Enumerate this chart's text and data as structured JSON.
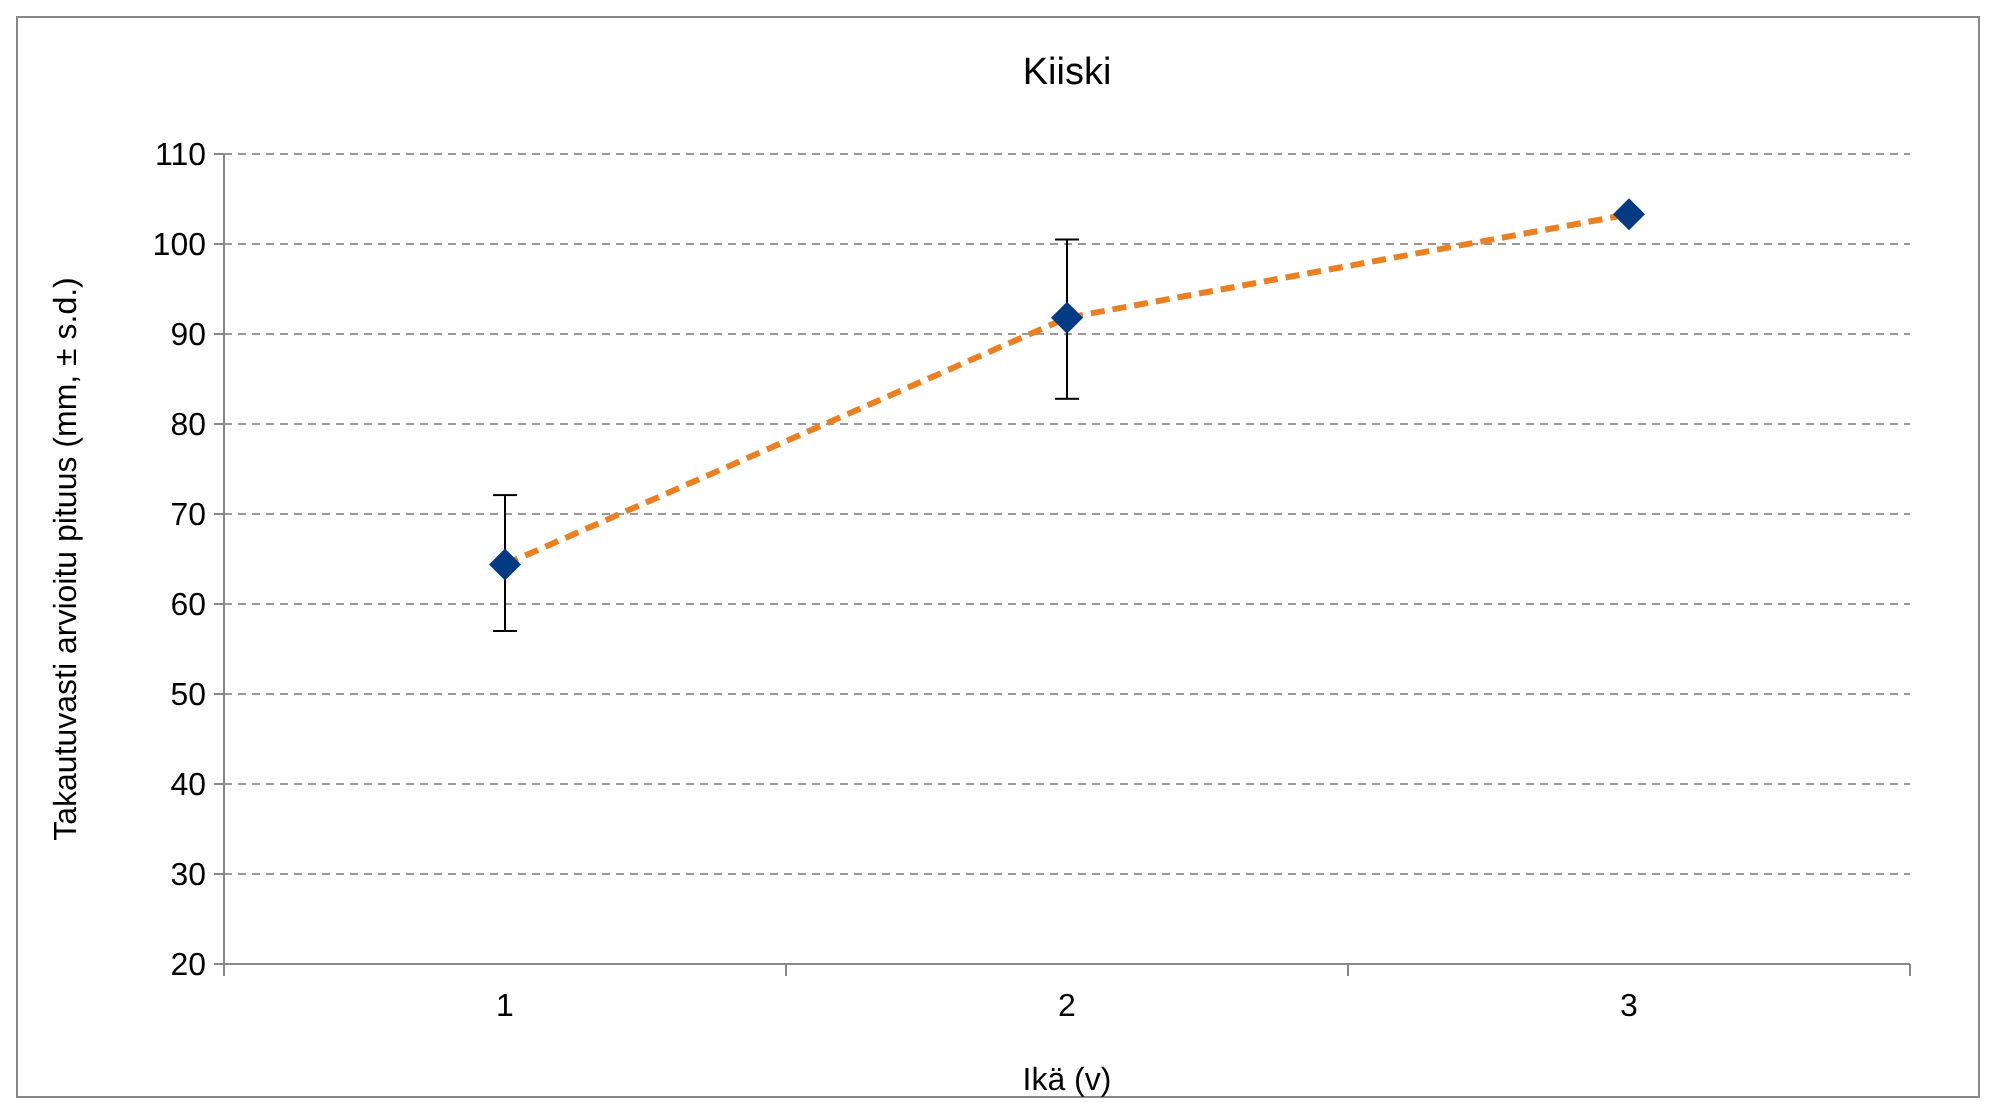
{
  "chart_data": {
    "type": "line",
    "title": "Kiiski",
    "xlabel": "Ikä (v)",
    "ylabel": "Takautuvasti arvioitu pituus (mm, ± s.d.)",
    "categories": [
      "1",
      "2",
      "3"
    ],
    "series": [
      {
        "color": "#ee7f1e",
        "colors": [
          "#023b84",
          "#023b84",
          "#023b84"
        ],
        "values": [
          64.4,
          91.8,
          103.3
        ],
        "errors": [
          [
            57.0,
            72.1
          ],
          [
            82.8,
            100.5
          ],
          null
        ]
      }
    ],
    "ylim": [
      20,
      110
    ],
    "yticks": [
      20,
      30,
      40,
      50,
      60,
      70,
      80,
      90,
      100,
      110
    ],
    "grid": "y",
    "marker": "diamond",
    "line_style": "dashed"
  }
}
